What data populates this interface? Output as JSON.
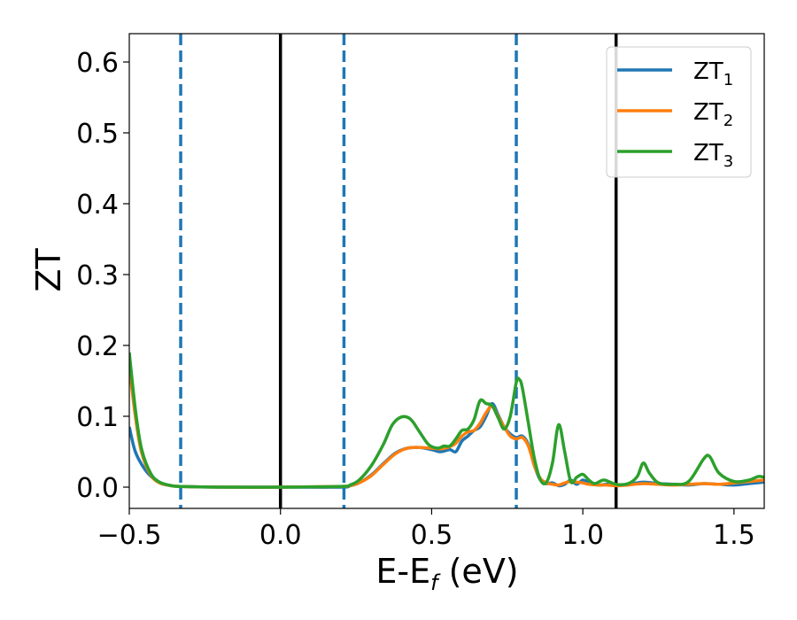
{
  "chart_data": {
    "type": "line",
    "xlabel": "E-E",
    "xlabel_sub": "f",
    "xlabel_unit": " (eV)",
    "ylabel": "ZT",
    "xlim": [
      -0.5,
      1.6
    ],
    "ylim": [
      -0.03,
      0.64
    ],
    "xticks": [
      -0.5,
      0.0,
      0.5,
      1.0,
      1.5
    ],
    "xtick_labels": [
      "−0.5",
      "0.0",
      "0.5",
      "1.0",
      "1.5"
    ],
    "yticks": [
      0.0,
      0.1,
      0.2,
      0.3,
      0.4,
      0.5,
      0.6
    ],
    "ytick_labels": [
      "0.0",
      "0.1",
      "0.2",
      "0.3",
      "0.4",
      "0.5",
      "0.6"
    ],
    "grid": false,
    "legend_position": "top-right",
    "vlines": [
      {
        "x": -0.33,
        "style": "dashed",
        "color": "#1f77b4"
      },
      {
        "x": 0.0,
        "style": "solid",
        "color": "#000000"
      },
      {
        "x": 0.21,
        "style": "dashed",
        "color": "#1f77b4"
      },
      {
        "x": 0.78,
        "style": "dashed",
        "color": "#1f77b4"
      },
      {
        "x": 1.11,
        "style": "solid",
        "color": "#000000"
      }
    ],
    "series": [
      {
        "name": "ZT",
        "sub": "1",
        "color": "#1f77b4",
        "points": [
          [
            -0.5,
            0.085
          ],
          [
            -0.48,
            0.05
          ],
          [
            -0.45,
            0.026
          ],
          [
            -0.42,
            0.012
          ],
          [
            -0.39,
            0.005
          ],
          [
            -0.36,
            0.002
          ],
          [
            -0.33,
            0.001
          ],
          [
            -0.2,
            0.0
          ],
          [
            0.0,
            0.0
          ],
          [
            0.2,
            0.0
          ],
          [
            0.23,
            0.002
          ],
          [
            0.26,
            0.006
          ],
          [
            0.3,
            0.017
          ],
          [
            0.34,
            0.033
          ],
          [
            0.38,
            0.048
          ],
          [
            0.42,
            0.055
          ],
          [
            0.46,
            0.056
          ],
          [
            0.5,
            0.053
          ],
          [
            0.53,
            0.05
          ],
          [
            0.56,
            0.053
          ],
          [
            0.58,
            0.05
          ],
          [
            0.6,
            0.065
          ],
          [
            0.62,
            0.072
          ],
          [
            0.64,
            0.08
          ],
          [
            0.66,
            0.085
          ],
          [
            0.68,
            0.1
          ],
          [
            0.7,
            0.118
          ],
          [
            0.72,
            0.102
          ],
          [
            0.74,
            0.085
          ],
          [
            0.76,
            0.075
          ],
          [
            0.78,
            0.07
          ],
          [
            0.8,
            0.072
          ],
          [
            0.82,
            0.06
          ],
          [
            0.84,
            0.03
          ],
          [
            0.86,
            0.01
          ],
          [
            0.88,
            0.005
          ],
          [
            0.9,
            0.006
          ],
          [
            0.92,
            0.002
          ],
          [
            0.94,
            0.004
          ],
          [
            0.96,
            0.01
          ],
          [
            0.98,
            0.004
          ],
          [
            1.0,
            0.01
          ],
          [
            1.02,
            0.006
          ],
          [
            1.05,
            0.003
          ],
          [
            1.08,
            0.004
          ],
          [
            1.11,
            0.003
          ],
          [
            1.15,
            0.004
          ],
          [
            1.2,
            0.007
          ],
          [
            1.25,
            0.005
          ],
          [
            1.3,
            0.004
          ],
          [
            1.35,
            0.003
          ],
          [
            1.4,
            0.005
          ],
          [
            1.45,
            0.004
          ],
          [
            1.5,
            0.003
          ],
          [
            1.55,
            0.005
          ],
          [
            1.6,
            0.007
          ]
        ]
      },
      {
        "name": "ZT",
        "sub": "2",
        "color": "#ff7f0e",
        "points": [
          [
            -0.5,
            0.17
          ],
          [
            -0.48,
            0.1
          ],
          [
            -0.46,
            0.05
          ],
          [
            -0.43,
            0.018
          ],
          [
            -0.4,
            0.006
          ],
          [
            -0.36,
            0.002
          ],
          [
            -0.33,
            0.001
          ],
          [
            -0.2,
            0.0
          ],
          [
            0.0,
            0.0
          ],
          [
            0.2,
            0.001
          ],
          [
            0.23,
            0.002
          ],
          [
            0.26,
            0.006
          ],
          [
            0.3,
            0.016
          ],
          [
            0.34,
            0.032
          ],
          [
            0.38,
            0.047
          ],
          [
            0.42,
            0.055
          ],
          [
            0.46,
            0.056
          ],
          [
            0.5,
            0.055
          ],
          [
            0.53,
            0.054
          ],
          [
            0.56,
            0.057
          ],
          [
            0.58,
            0.062
          ],
          [
            0.6,
            0.072
          ],
          [
            0.62,
            0.078
          ],
          [
            0.64,
            0.08
          ],
          [
            0.66,
            0.09
          ],
          [
            0.68,
            0.105
          ],
          [
            0.7,
            0.114
          ],
          [
            0.72,
            0.1
          ],
          [
            0.74,
            0.085
          ],
          [
            0.76,
            0.072
          ],
          [
            0.78,
            0.068
          ],
          [
            0.8,
            0.07
          ],
          [
            0.82,
            0.058
          ],
          [
            0.84,
            0.03
          ],
          [
            0.86,
            0.012
          ],
          [
            0.88,
            0.006
          ],
          [
            0.9,
            0.004
          ],
          [
            0.92,
            0.003
          ],
          [
            0.94,
            0.006
          ],
          [
            0.96,
            0.008
          ],
          [
            0.98,
            0.007
          ],
          [
            1.0,
            0.006
          ],
          [
            1.02,
            0.004
          ],
          [
            1.05,
            0.003
          ],
          [
            1.08,
            0.003
          ],
          [
            1.11,
            0.002
          ],
          [
            1.15,
            0.003
          ],
          [
            1.2,
            0.005
          ],
          [
            1.25,
            0.004
          ],
          [
            1.3,
            0.003
          ],
          [
            1.35,
            0.004
          ],
          [
            1.4,
            0.005
          ],
          [
            1.45,
            0.004
          ],
          [
            1.5,
            0.006
          ],
          [
            1.55,
            0.008
          ],
          [
            1.6,
            0.01
          ]
        ]
      },
      {
        "name": "ZT",
        "sub": "3",
        "color": "#2ca02c",
        "points": [
          [
            -0.5,
            0.19
          ],
          [
            -0.48,
            0.11
          ],
          [
            -0.46,
            0.055
          ],
          [
            -0.43,
            0.02
          ],
          [
            -0.4,
            0.007
          ],
          [
            -0.36,
            0.002
          ],
          [
            -0.33,
            0.001
          ],
          [
            -0.2,
            0.0
          ],
          [
            0.0,
            0.0
          ],
          [
            0.2,
            0.001
          ],
          [
            0.23,
            0.003
          ],
          [
            0.26,
            0.01
          ],
          [
            0.3,
            0.03
          ],
          [
            0.34,
            0.06
          ],
          [
            0.37,
            0.088
          ],
          [
            0.4,
            0.099
          ],
          [
            0.43,
            0.096
          ],
          [
            0.46,
            0.078
          ],
          [
            0.49,
            0.06
          ],
          [
            0.52,
            0.055
          ],
          [
            0.54,
            0.058
          ],
          [
            0.56,
            0.058
          ],
          [
            0.58,
            0.068
          ],
          [
            0.6,
            0.08
          ],
          [
            0.62,
            0.082
          ],
          [
            0.64,
            0.095
          ],
          [
            0.66,
            0.122
          ],
          [
            0.68,
            0.118
          ],
          [
            0.7,
            0.115
          ],
          [
            0.72,
            0.098
          ],
          [
            0.74,
            0.082
          ],
          [
            0.76,
            0.1
          ],
          [
            0.78,
            0.148
          ],
          [
            0.79,
            0.152
          ],
          [
            0.8,
            0.14
          ],
          [
            0.82,
            0.09
          ],
          [
            0.84,
            0.04
          ],
          [
            0.86,
            0.01
          ],
          [
            0.88,
            0.007
          ],
          [
            0.9,
            0.035
          ],
          [
            0.92,
            0.088
          ],
          [
            0.94,
            0.05
          ],
          [
            0.96,
            0.008
          ],
          [
            0.98,
            0.014
          ],
          [
            1.0,
            0.018
          ],
          [
            1.02,
            0.01
          ],
          [
            1.04,
            0.005
          ],
          [
            1.07,
            0.01
          ],
          [
            1.11,
            0.004
          ],
          [
            1.15,
            0.005
          ],
          [
            1.18,
            0.015
          ],
          [
            1.2,
            0.034
          ],
          [
            1.22,
            0.02
          ],
          [
            1.25,
            0.006
          ],
          [
            1.3,
            0.004
          ],
          [
            1.35,
            0.008
          ],
          [
            1.4,
            0.04
          ],
          [
            1.42,
            0.043
          ],
          [
            1.45,
            0.02
          ],
          [
            1.5,
            0.008
          ],
          [
            1.55,
            0.01
          ],
          [
            1.58,
            0.015
          ],
          [
            1.6,
            0.014
          ]
        ]
      }
    ]
  }
}
